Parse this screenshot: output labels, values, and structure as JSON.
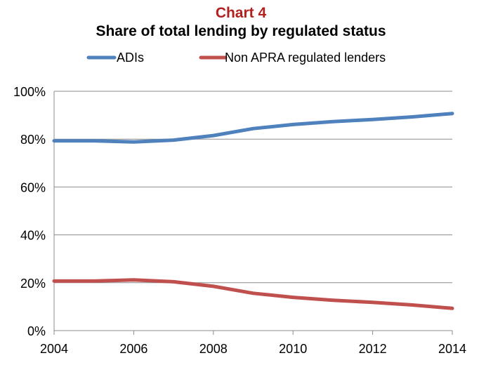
{
  "chart_data": {
    "type": "line",
    "title": "Chart 4",
    "subtitle": "Share of total lending by regulated status",
    "xlabel": "",
    "ylabel": "",
    "x": [
      2004,
      2005,
      2006,
      2007,
      2008,
      2009,
      2010,
      2011,
      2012,
      2013,
      2014
    ],
    "x_ticks": [
      "2004",
      "2006",
      "2008",
      "2010",
      "2012",
      "2014"
    ],
    "x_tick_values": [
      2004,
      2006,
      2008,
      2010,
      2012,
      2014
    ],
    "xlim": [
      2004,
      2014
    ],
    "y_ticks": [
      "0%",
      "20%",
      "40%",
      "60%",
      "80%",
      "100%"
    ],
    "y_tick_values": [
      0,
      20,
      40,
      60,
      80,
      100
    ],
    "ylim": [
      0,
      100
    ],
    "grid": true,
    "legend_position": "top",
    "series": [
      {
        "name": "ADIs",
        "color": "#4f81bd",
        "values": [
          79.3,
          79.3,
          78.8,
          79.6,
          81.5,
          84.4,
          86.1,
          87.3,
          88.2,
          89.3,
          90.7
        ]
      },
      {
        "name": "Non APRA regulated lenders",
        "color": "#c0504d",
        "values": [
          20.7,
          20.7,
          21.2,
          20.4,
          18.5,
          15.6,
          13.9,
          12.7,
          11.8,
          10.7,
          9.3
        ]
      }
    ]
  }
}
